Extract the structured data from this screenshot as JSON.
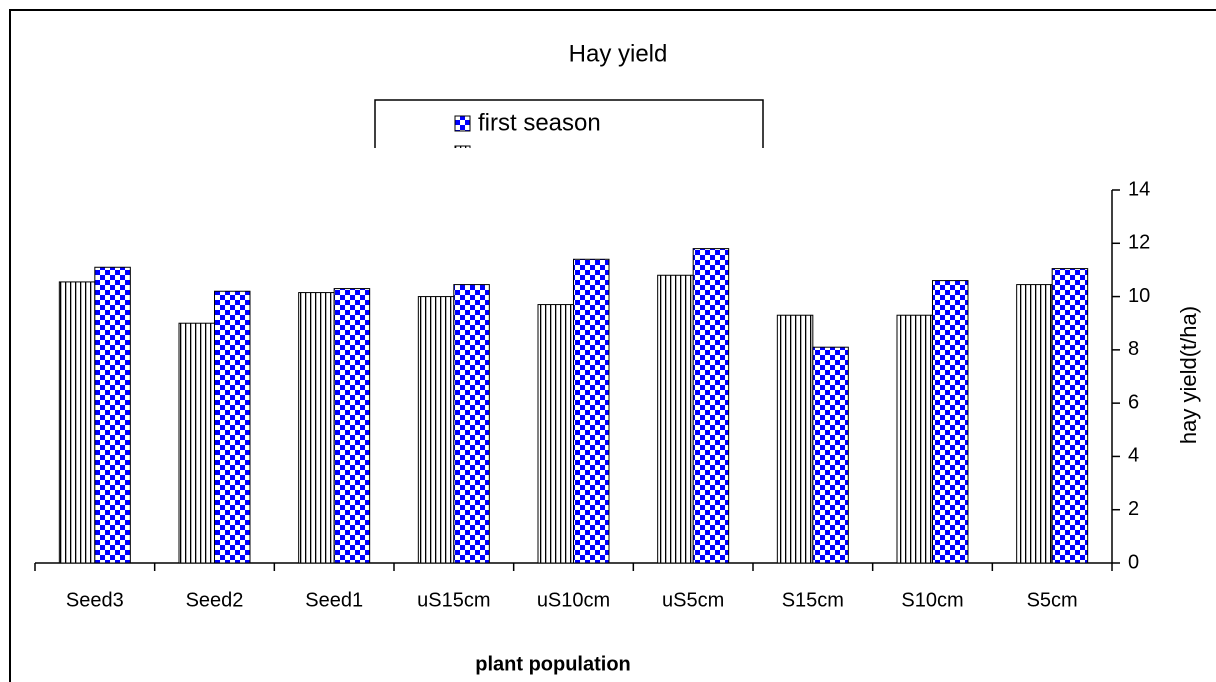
{
  "chart_data": {
    "type": "bar",
    "title": "Hay yield",
    "xlabel": "plant population",
    "ylabel": "hay yield(t/ha)",
    "categories": [
      "Seed3",
      "Seed2",
      "Seed1",
      "uS15cm",
      "uS10cm",
      "uS5cm",
      "S15cm",
      "S10cm",
      "S5cm"
    ],
    "series": [
      {
        "color": "#000000",
        "pattern": "stripe",
        "values": [
          10.55,
          9.0,
          10.15,
          10.0,
          9.7,
          10.8,
          9.3,
          9.3,
          10.45
        ]
      },
      {
        "name": "first season",
        "color": "#0000ff",
        "pattern": "checker",
        "values": [
          11.1,
          10.2,
          10.3,
          10.45,
          11.4,
          11.8,
          8.1,
          10.6,
          11.05
        ]
      }
    ],
    "ylim": [
      0,
      14
    ],
    "yticks": [
      0,
      2,
      4,
      6,
      8,
      10,
      12,
      14
    ],
    "yaxis_side": "right",
    "grid": false
  }
}
